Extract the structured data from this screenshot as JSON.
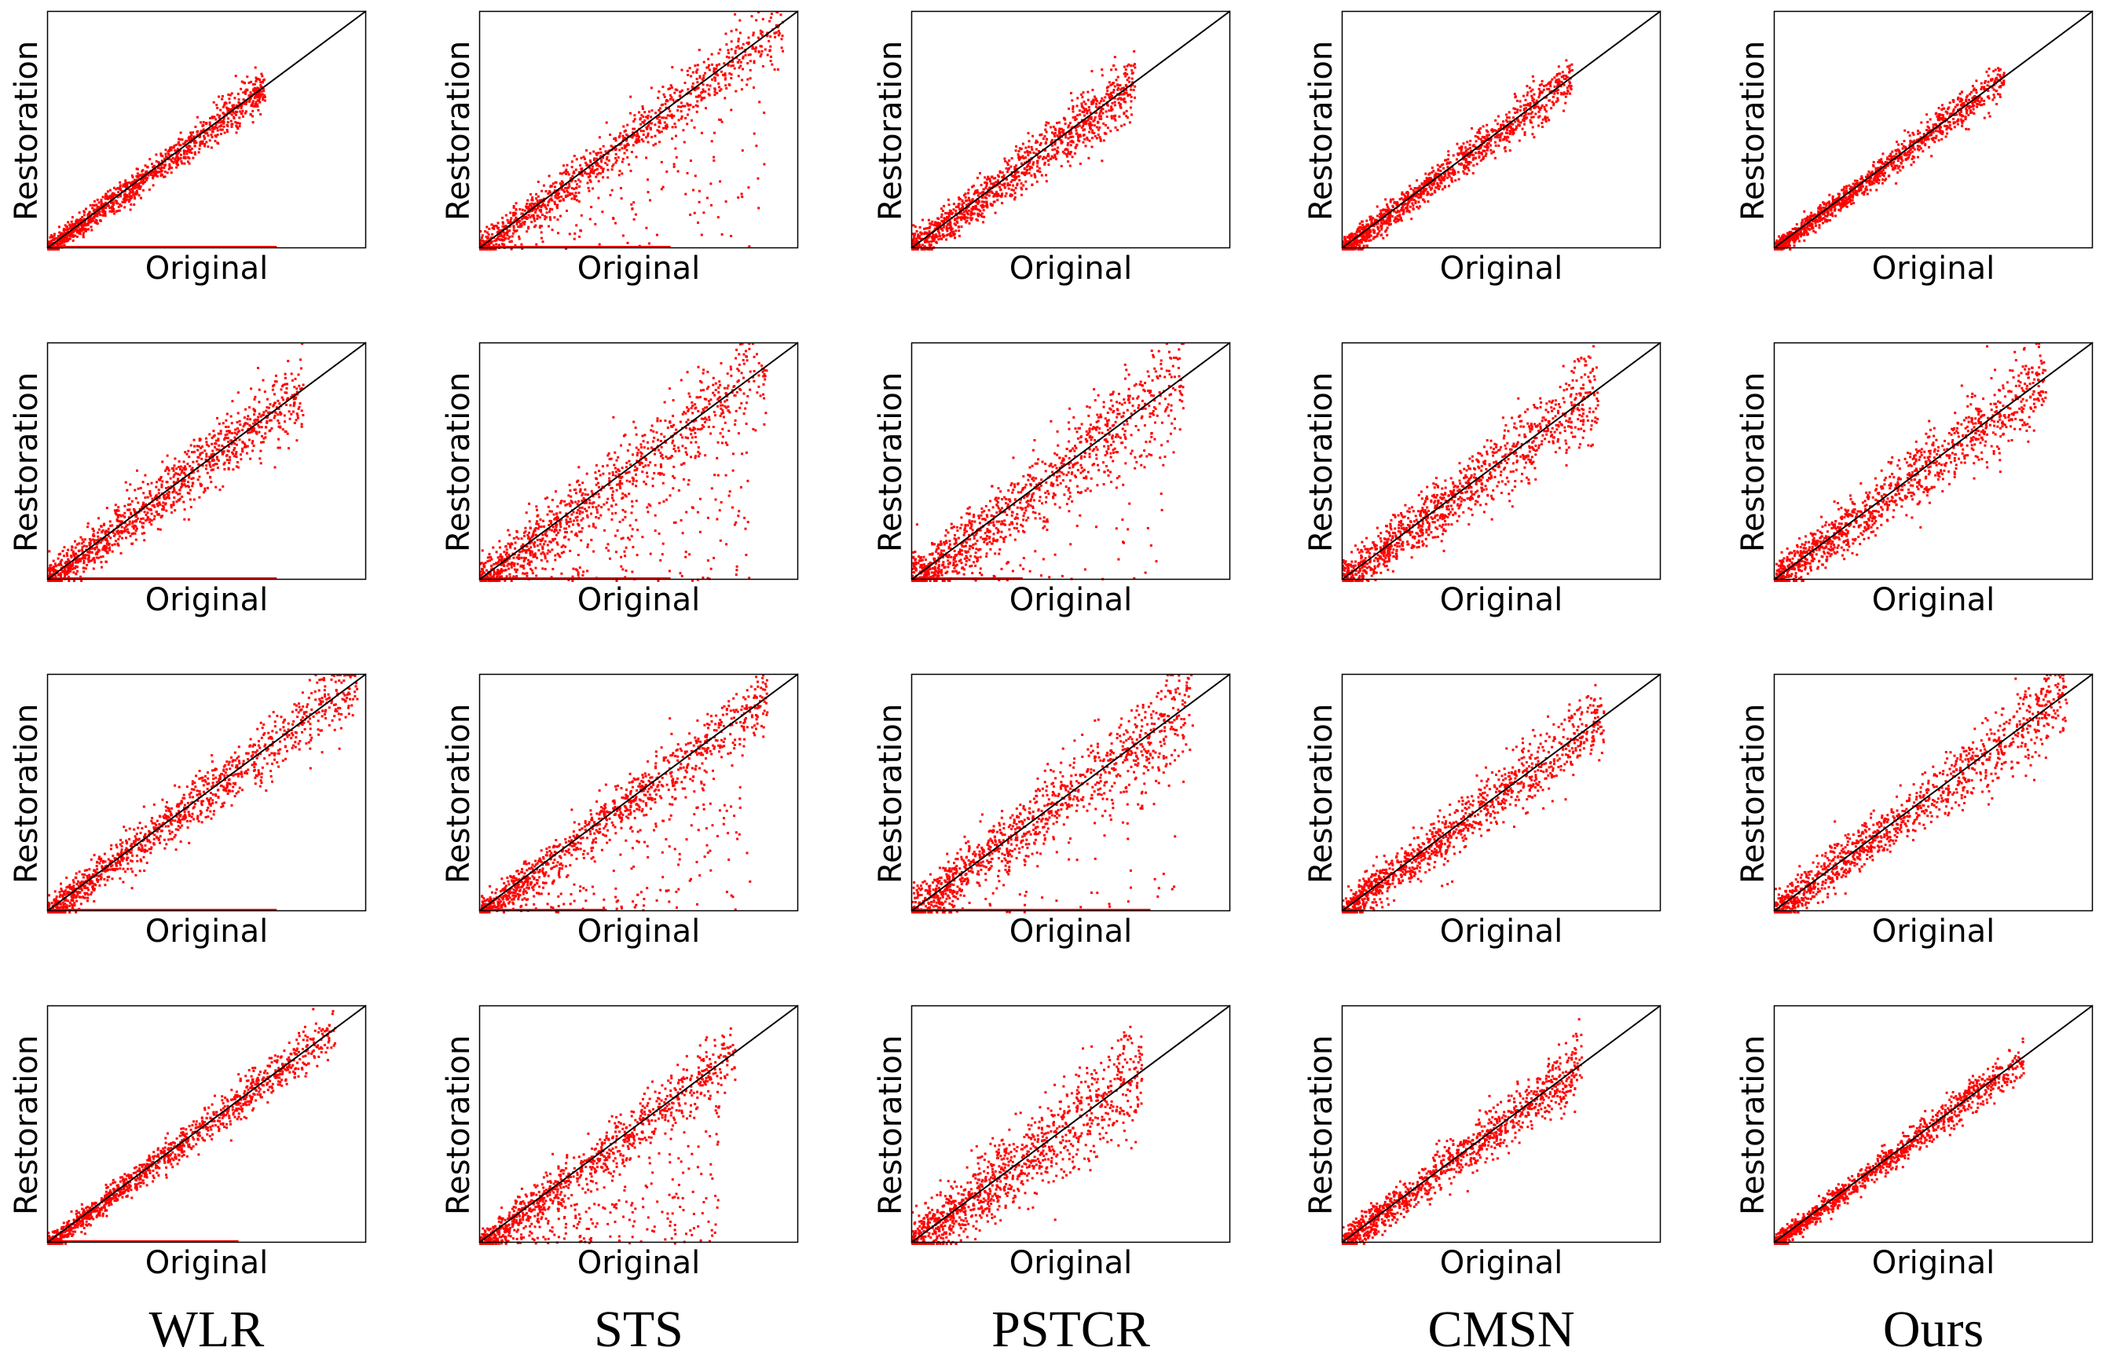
{
  "figure": {
    "methods": [
      "WLR",
      "STS",
      "PSTCR",
      "CMSN",
      "Ours"
    ],
    "row_count": 4
  },
  "colors": {
    "points": "#ff0000",
    "reference_line": "#000000",
    "frame": "#000000"
  },
  "chart_data": {
    "type": "scatter",
    "xlabel": "Original",
    "ylabel": "Restoration",
    "xlim": [
      0,
      1
    ],
    "ylim": [
      0,
      1
    ],
    "reference_line": {
      "slope": 1,
      "intercept": 0
    },
    "grid": false,
    "legend": "none",
    "plots": [
      {
        "row": 1,
        "method": "WLR",
        "xlabel": "Original",
        "ylabel": "Restoration",
        "spread": 0.035,
        "x_max": 0.68,
        "bottom_band": [
          0.0,
          0.72
        ],
        "outlier_fraction": 0.0
      },
      {
        "row": 1,
        "method": "STS",
        "xlabel": "Original",
        "ylabel": "Restoration",
        "spread": 0.05,
        "x_max": 0.95,
        "bottom_band": [
          0.0,
          0.6
        ],
        "outlier_fraction": 0.12
      },
      {
        "row": 1,
        "method": "PSTCR",
        "xlabel": "Original",
        "ylabel": "Restoration",
        "spread": 0.055,
        "x_max": 0.7,
        "bottom_band": null,
        "outlier_fraction": 0.0
      },
      {
        "row": 1,
        "method": "CMSN",
        "xlabel": "Original",
        "ylabel": "Restoration",
        "spread": 0.04,
        "x_max": 0.72,
        "bottom_band": null,
        "outlier_fraction": 0.0
      },
      {
        "row": 1,
        "method": "Ours",
        "xlabel": "Original",
        "ylabel": "Restoration",
        "spread": 0.03,
        "x_max": 0.72,
        "bottom_band": null,
        "outlier_fraction": 0.0
      },
      {
        "row": 2,
        "method": "WLR",
        "xlabel": "Original",
        "ylabel": "Restoration",
        "spread": 0.06,
        "x_max": 0.8,
        "bottom_band": [
          0.0,
          0.72
        ],
        "outlier_fraction": 0.0
      },
      {
        "row": 2,
        "method": "STS",
        "xlabel": "Original",
        "ylabel": "Restoration",
        "spread": 0.07,
        "x_max": 0.9,
        "bottom_band": [
          0.0,
          0.6
        ],
        "outlier_fraction": 0.18
      },
      {
        "row": 2,
        "method": "PSTCR",
        "xlabel": "Original",
        "ylabel": "Restoration",
        "spread": 0.08,
        "x_max": 0.85,
        "bottom_band": [
          0.0,
          0.35
        ],
        "outlier_fraction": 0.08
      },
      {
        "row": 2,
        "method": "CMSN",
        "xlabel": "Original",
        "ylabel": "Restoration",
        "spread": 0.07,
        "x_max": 0.8,
        "bottom_band": null,
        "outlier_fraction": 0.0
      },
      {
        "row": 2,
        "method": "Ours",
        "xlabel": "Original",
        "ylabel": "Restoration",
        "spread": 0.065,
        "x_max": 0.85,
        "bottom_band": null,
        "outlier_fraction": 0.0
      },
      {
        "row": 3,
        "method": "WLR",
        "xlabel": "Original",
        "ylabel": "Restoration",
        "spread": 0.05,
        "x_max": 0.97,
        "bottom_band": [
          0.0,
          0.72
        ],
        "outlier_fraction": 0.0
      },
      {
        "row": 3,
        "method": "STS",
        "xlabel": "Original",
        "ylabel": "Restoration",
        "spread": 0.05,
        "x_max": 0.9,
        "bottom_band": [
          0.0,
          0.4
        ],
        "outlier_fraction": 0.15
      },
      {
        "row": 3,
        "method": "PSTCR",
        "xlabel": "Original",
        "ylabel": "Restoration",
        "spread": 0.08,
        "x_max": 0.88,
        "bottom_band": [
          0.0,
          0.75
        ],
        "outlier_fraction": 0.06
      },
      {
        "row": 3,
        "method": "CMSN",
        "xlabel": "Original",
        "ylabel": "Restoration",
        "spread": 0.06,
        "x_max": 0.82,
        "bottom_band": null,
        "outlier_fraction": 0.0
      },
      {
        "row": 3,
        "method": "Ours",
        "xlabel": "Original",
        "ylabel": "Restoration",
        "spread": 0.06,
        "x_max": 0.92,
        "bottom_band": null,
        "outlier_fraction": 0.0
      },
      {
        "row": 4,
        "method": "WLR",
        "xlabel": "Original",
        "ylabel": "Restoration",
        "spread": 0.035,
        "x_max": 0.9,
        "bottom_band": [
          0.0,
          0.6
        ],
        "outlier_fraction": 0.0
      },
      {
        "row": 4,
        "method": "STS",
        "xlabel": "Original",
        "ylabel": "Restoration",
        "spread": 0.05,
        "x_max": 0.8,
        "bottom_band": null,
        "outlier_fraction": 0.2
      },
      {
        "row": 4,
        "method": "PSTCR",
        "xlabel": "Original",
        "ylabel": "Restoration",
        "spread": 0.09,
        "x_max": 0.72,
        "bottom_band": null,
        "outlier_fraction": 0.0
      },
      {
        "row": 4,
        "method": "CMSN",
        "xlabel": "Original",
        "ylabel": "Restoration",
        "spread": 0.05,
        "x_max": 0.75,
        "bottom_band": null,
        "outlier_fraction": 0.0
      },
      {
        "row": 4,
        "method": "Ours",
        "xlabel": "Original",
        "ylabel": "Restoration",
        "spread": 0.03,
        "x_max": 0.78,
        "bottom_band": null,
        "outlier_fraction": 0.0
      }
    ]
  }
}
